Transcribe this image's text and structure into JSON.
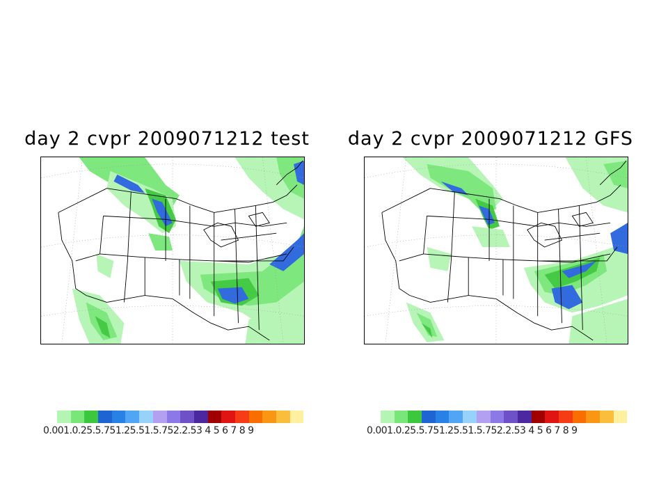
{
  "panels": [
    {
      "title": "day 2 cvpr 2009071212 test",
      "model": "test"
    },
    {
      "title": "day 2 cvpr 2009071212 GFS",
      "model": "GFS"
    }
  ],
  "colorbar": {
    "colors": [
      "#b4f5b4",
      "#78e678",
      "#3cc83c",
      "#1e64d2",
      "#2882e6",
      "#50a5f5",
      "#96d2fa",
      "#b4a0f0",
      "#8c78e6",
      "#6e50c8",
      "#4b28a0",
      "#a00000",
      "#e11414",
      "#f53c14",
      "#fa6e00",
      "#fa9614",
      "#fabe3c",
      "#fff0a0"
    ],
    "label_text": "0.001.0.25.5.751.25.51.5.752.2.53  4  5  6  7  8  9"
  },
  "colors": {
    "light_green": "#b4f5b4",
    "green": "#3cc83c",
    "blue": "#2864dc",
    "purple": "#7864c8",
    "outline": "#000000"
  }
}
